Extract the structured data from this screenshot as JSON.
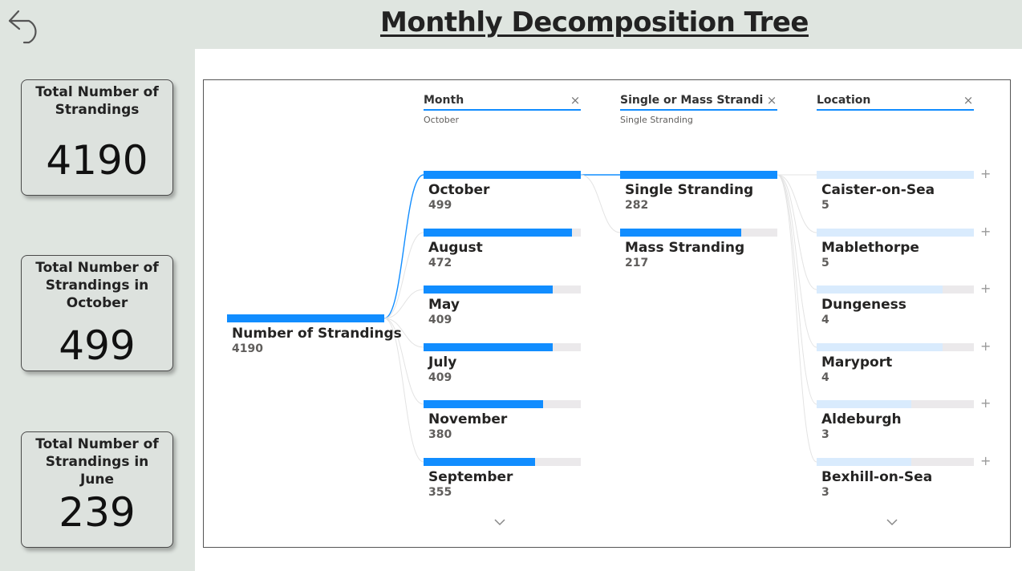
{
  "header": {
    "title": "Monthly Decomposition Tree"
  },
  "icons": {
    "back": "back-arrow-icon",
    "close": "close-icon",
    "expand": "plus-icon",
    "more": "chevron-down-icon"
  },
  "colors": {
    "bar": "#118dff",
    "bar_light": "#d9ebfd",
    "track": "#ebe9eb",
    "sidebar": "#dfe5e0"
  },
  "cards": [
    {
      "title": "Total Number of Strandings",
      "value": "4190"
    },
    {
      "title": "Total Number of Strandings in October",
      "value": "499"
    },
    {
      "title": "Total Number of Strandings in June",
      "value": "239"
    }
  ],
  "tree": {
    "close_glyph": "×",
    "expand_glyph": "+",
    "root": {
      "label": "Number of Strandings",
      "value": "4190"
    },
    "levels": [
      {
        "name": "Month",
        "selected": "October"
      },
      {
        "name": "Single or Mass Strandi...",
        "selected": "Single Stranding"
      },
      {
        "name": "Location",
        "selected": ""
      }
    ],
    "months": [
      {
        "label": "October",
        "value": "499",
        "fraction": 1.0
      },
      {
        "label": "August",
        "value": "472",
        "fraction": 0.946
      },
      {
        "label": "May",
        "value": "409",
        "fraction": 0.82
      },
      {
        "label": "July",
        "value": "409",
        "fraction": 0.82
      },
      {
        "label": "November",
        "value": "380",
        "fraction": 0.762
      },
      {
        "label": "September",
        "value": "355",
        "fraction": 0.711
      }
    ],
    "stranding_types": [
      {
        "label": "Single Stranding",
        "value": "282",
        "fraction": 1.0
      },
      {
        "label": "Mass Stranding",
        "value": "217",
        "fraction": 0.77
      }
    ],
    "locations": [
      {
        "label": "Caister-on-Sea",
        "value": "5",
        "fraction": 1.0
      },
      {
        "label": "Mablethorpe",
        "value": "5",
        "fraction": 1.0
      },
      {
        "label": "Dungeness",
        "value": "4",
        "fraction": 0.8
      },
      {
        "label": "Maryport",
        "value": "4",
        "fraction": 0.8
      },
      {
        "label": "Aldeburgh",
        "value": "3",
        "fraction": 0.6
      },
      {
        "label": "Bexhill-on-Sea",
        "value": "3",
        "fraction": 0.6
      }
    ]
  }
}
